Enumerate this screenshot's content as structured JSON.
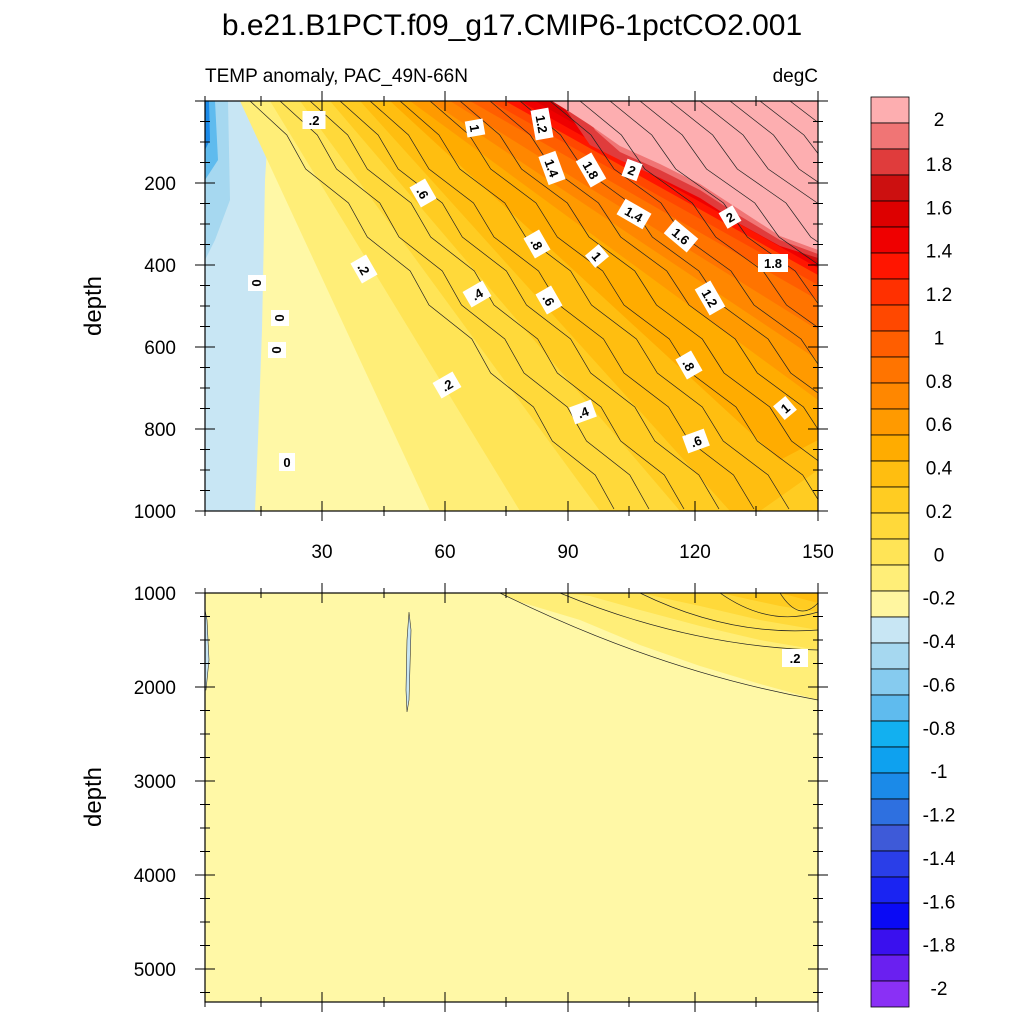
{
  "chart_data": {
    "type": "heatmap",
    "title": "b.e21.B1PCT.f09_g17.CMIP6-1pctCO2.001",
    "subtitle_left": "TEMP anomaly, PAC_49N-66N",
    "subtitle_right": "degC",
    "x_range": [
      0,
      150
    ],
    "x_tick_labels": [
      "30",
      "60",
      "90",
      "120",
      "150"
    ],
    "top_panel": {
      "ylabel": "depth",
      "ylim": [
        1000,
        0
      ],
      "y_tick_labels": [
        "200",
        "400",
        "600",
        "800",
        "1000"
      ],
      "contour_labels": [
        ".2",
        "1",
        "1.2",
        "1.4",
        "1.8",
        "2",
        ".6",
        "1.4",
        "1.6",
        "2",
        ".8",
        "1",
        "1.8",
        ".2",
        "0",
        ".4",
        ".6",
        "1.2",
        "0",
        "0",
        ".8",
        ".2",
        ".4",
        "1",
        ".6",
        "0"
      ]
    },
    "bottom_panel": {
      "ylabel": "depth",
      "ylim": [
        5350,
        1000
      ],
      "y_tick_labels": [
        "1000",
        "2000",
        "3000",
        "4000",
        "5000"
      ],
      "contour_labels": [
        ".2"
      ]
    },
    "colorbar": {
      "tick_labels": [
        "2",
        "1.8",
        "1.6",
        "1.4",
        "1.2",
        "1",
        "0.8",
        "0.6",
        "0.4",
        "0.2",
        "0",
        "-0.2",
        "-0.4",
        "-0.6",
        "-0.8",
        "-1",
        "-1.2",
        "-1.4",
        "-1.6",
        "-1.8",
        "-2"
      ],
      "colors": [
        "#fdaeb0",
        "#f07575",
        "#e03c3c",
        "#cc1010",
        "#dd0000",
        "#ef0000",
        "#ff1500",
        "#ff3000",
        "#ff4800",
        "#ff5e00",
        "#ff7400",
        "#ff8700",
        "#ff9a00",
        "#ffac00",
        "#ffbe10",
        "#ffcc22",
        "#ffd93a",
        "#ffe456",
        "#ffee78",
        "#fff6a0",
        "#c8e6f4",
        "#a6d8f0",
        "#86cbef",
        "#5fbbee",
        "#12b0f0",
        "#0ea1ef",
        "#1b8ae8",
        "#2e70e0",
        "#3e5ad8",
        "#2a3ee8",
        "#1a24f2",
        "#0a0af5",
        "#3a10ee",
        "#6a20f0",
        "#8a30f5"
      ]
    }
  }
}
